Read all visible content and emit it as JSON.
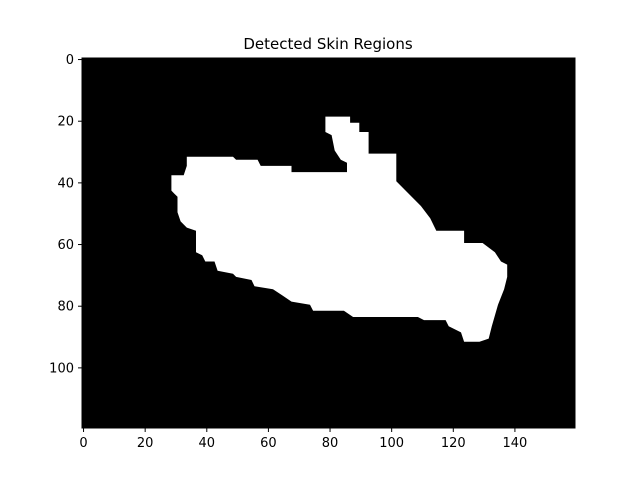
{
  "chart_data": {
    "type": "heatmap",
    "title": "Detected Skin Regions",
    "xlabel": "",
    "ylabel": "",
    "image_width": 160,
    "image_height": 120,
    "xlim": [
      0,
      160
    ],
    "ylim": [
      120,
      0
    ],
    "x_ticks": [
      0,
      20,
      40,
      60,
      80,
      100,
      120,
      140
    ],
    "y_ticks": [
      0,
      20,
      40,
      60,
      80,
      100
    ],
    "colors": {
      "background": "#000000",
      "mask": "#ffffff"
    },
    "grid": false,
    "mask_polygon": [
      [
        79,
        19
      ],
      [
        87,
        19
      ],
      [
        87,
        21
      ],
      [
        90,
        21
      ],
      [
        90,
        24
      ],
      [
        93,
        24
      ],
      [
        93,
        31
      ],
      [
        102,
        31
      ],
      [
        102,
        40
      ],
      [
        110,
        48
      ],
      [
        113,
        52
      ],
      [
        115,
        56
      ],
      [
        124,
        56
      ],
      [
        124,
        60
      ],
      [
        130,
        60
      ],
      [
        134,
        63
      ],
      [
        136,
        66
      ],
      [
        138,
        67
      ],
      [
        138,
        71
      ],
      [
        137,
        75
      ],
      [
        135,
        80
      ],
      [
        133,
        87
      ],
      [
        132,
        91
      ],
      [
        129,
        92
      ],
      [
        124,
        92
      ],
      [
        123,
        89
      ],
      [
        119,
        87
      ],
      [
        118,
        85
      ],
      [
        111,
        85
      ],
      [
        109,
        84
      ],
      [
        88,
        84
      ],
      [
        85,
        82
      ],
      [
        75,
        82
      ],
      [
        74,
        80
      ],
      [
        68,
        79
      ],
      [
        65,
        77
      ],
      [
        62,
        75
      ],
      [
        56,
        74
      ],
      [
        55,
        72
      ],
      [
        50,
        71
      ],
      [
        49,
        70
      ],
      [
        44,
        69
      ],
      [
        43,
        66
      ],
      [
        40,
        66
      ],
      [
        39,
        64
      ],
      [
        37,
        63
      ],
      [
        37,
        56
      ],
      [
        34,
        55
      ],
      [
        32,
        53
      ],
      [
        31,
        50
      ],
      [
        31,
        45
      ],
      [
        30,
        44
      ],
      [
        29,
        43
      ],
      [
        29,
        38
      ],
      [
        33,
        38
      ],
      [
        34,
        35
      ],
      [
        34,
        32
      ],
      [
        49,
        32
      ],
      [
        50,
        33
      ],
      [
        57,
        33
      ],
      [
        58,
        35
      ],
      [
        68,
        35
      ],
      [
        68,
        37
      ],
      [
        86,
        37
      ],
      [
        86,
        34
      ],
      [
        84,
        33
      ],
      [
        82,
        30
      ],
      [
        81,
        25
      ],
      [
        79,
        24
      ]
    ]
  }
}
